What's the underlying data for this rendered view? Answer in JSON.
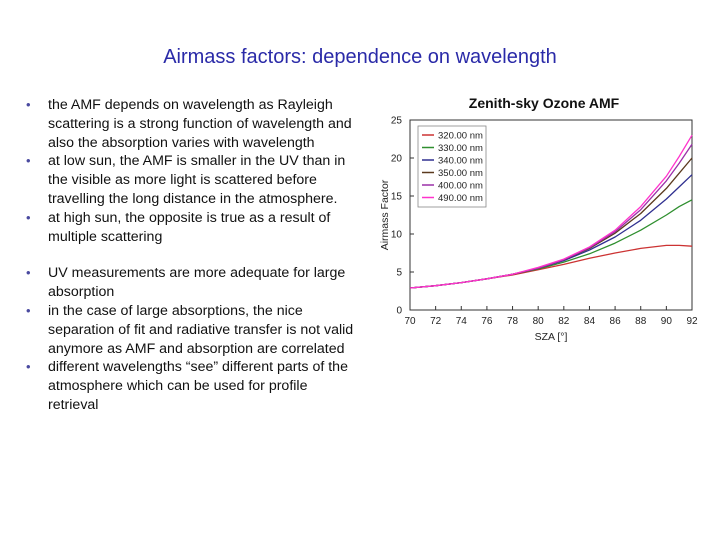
{
  "slide": {
    "title": "Airmass factors: dependence on wavelength"
  },
  "bullet_marker": "•",
  "bullet_groups": [
    {
      "items": [
        "the AMF depends on wavelength as Rayleigh scattering is a strong function of wavelength and also the absorption varies with wavelength",
        "at low sun, the AMF is smaller in the UV than in the visible as more light is scattered before travelling the long distance in the atmosphere.",
        "at high sun, the opposite is true as a result of multiple scattering"
      ]
    },
    {
      "items": [
        "UV measurements are more adequate for large absorption",
        "in the case of large absorptions, the nice separation of fit and radiative transfer is not valid anymore as AMF and absorption are correlated",
        "different wavelengths “see” different parts of the atmosphere which can be used for profile retrieval"
      ]
    }
  ],
  "chart_data": {
    "type": "line",
    "title": "Zenith-sky Ozone AMF",
    "xlabel": "SZA [°]",
    "ylabel": "Airmass Factor",
    "xlim": [
      70,
      92
    ],
    "ylim": [
      0,
      25
    ],
    "xticks": [
      70,
      72,
      74,
      76,
      78,
      80,
      82,
      84,
      86,
      88,
      90,
      92
    ],
    "yticks": [
      0,
      5,
      10,
      15,
      20,
      25
    ],
    "legend_position": "top-left",
    "grid": false,
    "x": [
      70,
      72,
      74,
      76,
      78,
      80,
      82,
      84,
      86,
      88,
      90,
      91,
      92
    ],
    "series": [
      {
        "name": "320.00 nm",
        "color": "#cc3333",
        "values": [
          2.9,
          3.2,
          3.6,
          4.1,
          4.6,
          5.3,
          6.0,
          6.8,
          7.5,
          8.1,
          8.5,
          8.5,
          8.4
        ]
      },
      {
        "name": "330.00 nm",
        "color": "#2f8f2f",
        "values": [
          2.9,
          3.2,
          3.6,
          4.1,
          4.7,
          5.4,
          6.3,
          7.4,
          8.8,
          10.5,
          12.5,
          13.6,
          14.5
        ]
      },
      {
        "name": "340.00 nm",
        "color": "#303090",
        "values": [
          2.9,
          3.2,
          3.6,
          4.1,
          4.7,
          5.5,
          6.5,
          7.9,
          9.6,
          11.8,
          14.6,
          16.2,
          17.8
        ]
      },
      {
        "name": "350.00 nm",
        "color": "#5b3a1e",
        "values": [
          2.9,
          3.2,
          3.6,
          4.1,
          4.7,
          5.5,
          6.6,
          8.1,
          10.1,
          12.7,
          16.0,
          18.0,
          20.0
        ]
      },
      {
        "name": "400.00 nm",
        "color": "#9b30a8",
        "values": [
          2.9,
          3.2,
          3.6,
          4.1,
          4.7,
          5.5,
          6.6,
          8.2,
          10.3,
          13.2,
          17.0,
          19.3,
          21.8
        ]
      },
      {
        "name": "490.00 nm",
        "color": "#ff33cc",
        "values": [
          2.9,
          3.2,
          3.6,
          4.1,
          4.7,
          5.6,
          6.7,
          8.3,
          10.5,
          13.6,
          17.6,
          20.2,
          23.0
        ]
      }
    ]
  }
}
